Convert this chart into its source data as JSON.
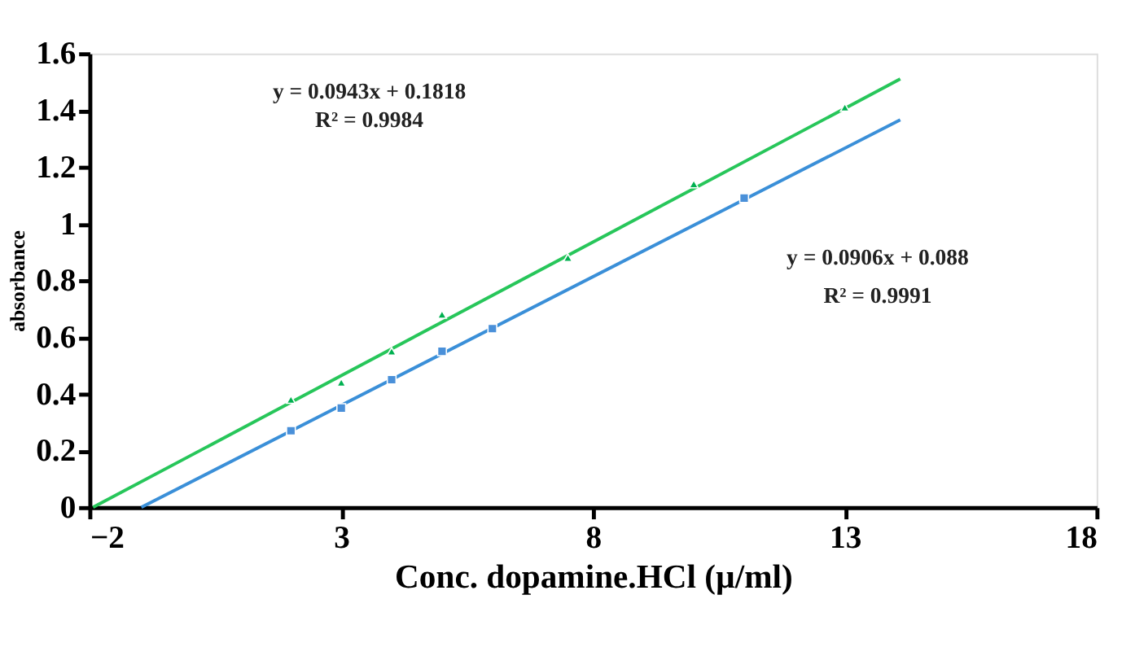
{
  "chart_data": {
    "type": "scatter",
    "xlabel": "Conc. dopamine.HCl (µ/ml)",
    "ylabel": "absorbance",
    "xlim": [
      -2,
      18
    ],
    "xticks": [
      -2,
      3,
      8,
      13,
      18
    ],
    "ylim": [
      0,
      1.6
    ],
    "yticks": [
      0,
      0.2,
      0.4,
      0.6,
      0.8,
      1,
      1.2,
      1.4,
      1.6
    ],
    "grid": false,
    "series": [
      {
        "marker": "triangle",
        "color": "#00b050",
        "x": [
          2,
          3,
          4,
          5,
          7.5,
          10,
          13
        ],
        "values": [
          0.38,
          0.44,
          0.55,
          0.68,
          0.88,
          1.14,
          1.41
        ]
      },
      {
        "marker": "square",
        "color": "#4a90d9",
        "x": [
          2,
          3,
          4,
          5,
          6,
          11
        ],
        "values": [
          0.27,
          0.35,
          0.45,
          0.55,
          0.63,
          1.09
        ]
      },
      {
        "type": "line",
        "line_style": "solid",
        "color": "#27c65a",
        "x": [
          -1.93,
          14.1
        ],
        "values": [
          0,
          1.51
        ]
      },
      {
        "type": "line",
        "line_style": "solid",
        "color": "#3a8fd8",
        "x": [
          -0.97,
          14.1
        ],
        "values": [
          0,
          1.366
        ]
      }
    ],
    "annotations": [
      "y = 0.0943x + 0.1818",
      "R² = 0.9984",
      "y = 0.0906x + 0.088",
      "R² = 0.9991"
    ]
  }
}
